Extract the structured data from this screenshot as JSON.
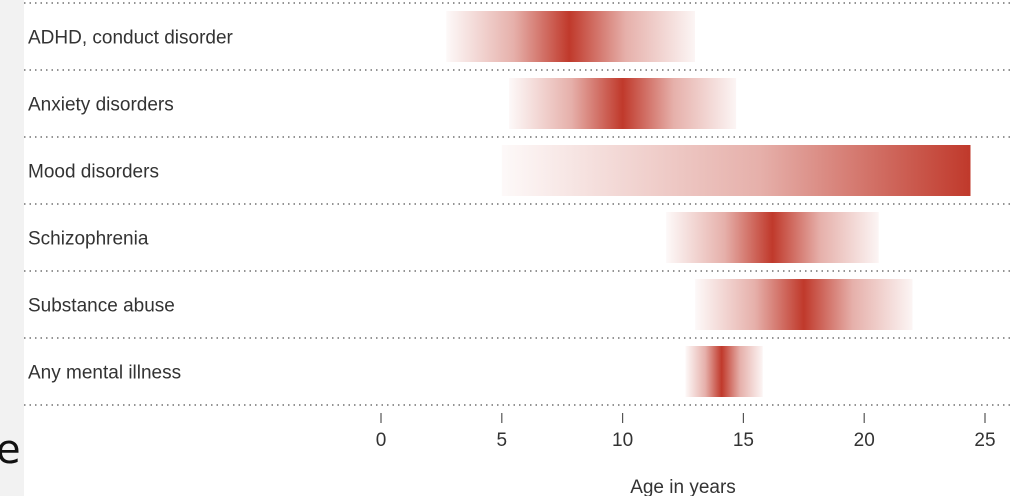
{
  "stray_text": "e",
  "chart_data": {
    "type": "range-bar",
    "title": "",
    "xlabel": "Age in years",
    "ylabel": "",
    "xlim": [
      0,
      25
    ],
    "x_ticks": [
      "0",
      "5",
      "10",
      "15",
      "20",
      "25"
    ],
    "grid": "dotted horizontal separators",
    "colors": {
      "peak": "#c0392b",
      "fade": "#ffffff",
      "grid": "#555555",
      "tick": "#555555"
    },
    "categories": [
      "ADHD, conduct disorder",
      "Anxiety disorders",
      "Mood disorders",
      "Schizophrenia",
      "Substance abuse",
      "Any mental illness"
    ],
    "ranges": [
      {
        "start": 2.7,
        "peak": 7.8,
        "end": 13.0
      },
      {
        "start": 5.3,
        "peak": 10.0,
        "end": 14.7
      },
      {
        "start": 5.0,
        "peak": 24.4,
        "end": 24.4
      },
      {
        "start": 11.8,
        "peak": 16.2,
        "end": 20.6
      },
      {
        "start": 13.0,
        "peak": 17.5,
        "end": 22.0
      },
      {
        "start": 12.6,
        "peak": 14.1,
        "end": 15.8
      }
    ]
  }
}
